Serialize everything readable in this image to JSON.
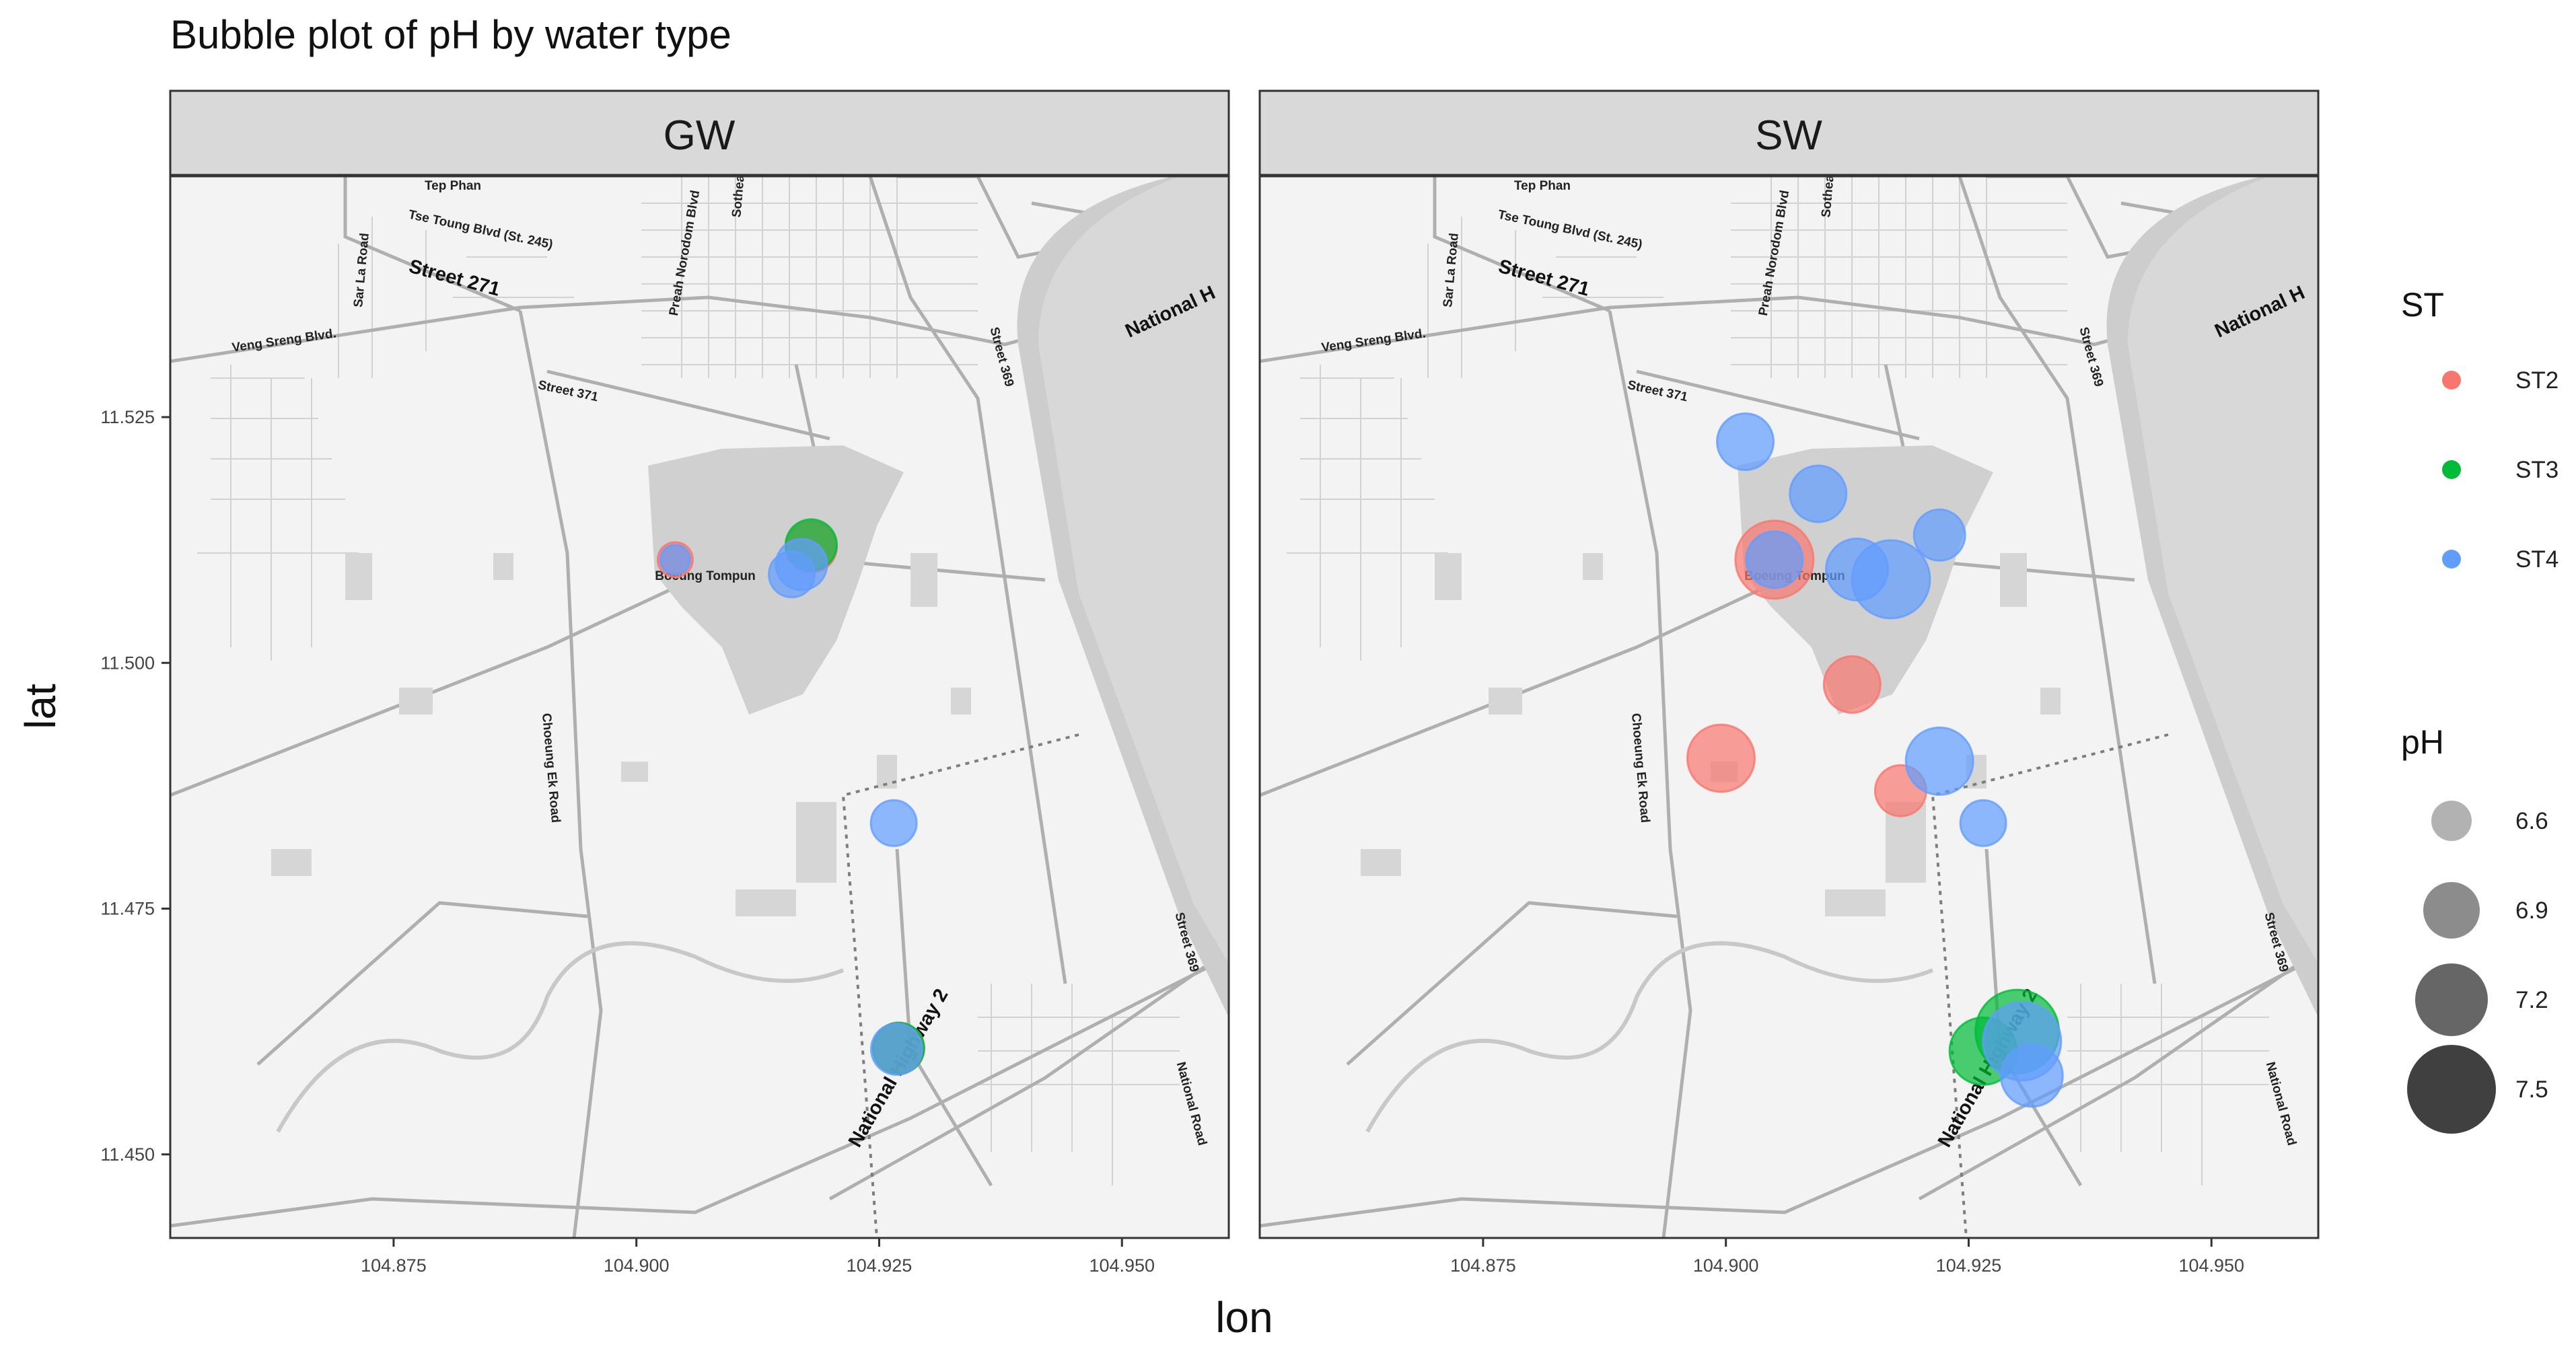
{
  "chart_data": {
    "type": "scatter",
    "title": "Bubble plot of pH by water type",
    "xlabel": "lon",
    "ylabel": "lat",
    "xlim": [
      104.852,
      104.961
    ],
    "ylim": [
      11.4415,
      11.5495
    ],
    "xticks": [
      104.875,
      104.9,
      104.925,
      104.95
    ],
    "xtick_labels": [
      "104.875",
      "104.900",
      "104.925",
      "104.950"
    ],
    "yticks": [
      11.45,
      11.475,
      11.5,
      11.525
    ],
    "ytick_labels": [
      "11.450",
      "11.475",
      "11.500",
      "11.525"
    ],
    "facets": [
      "GW",
      "SW"
    ],
    "color_legend": {
      "title": "ST",
      "entries": [
        {
          "label": "ST2",
          "color": "#F8766D"
        },
        {
          "label": "ST3",
          "color": "#00BA38"
        },
        {
          "label": "ST4",
          "color": "#619CFF"
        }
      ]
    },
    "size_legend": {
      "title": "pH",
      "values": [
        6.6,
        6.9,
        7.2,
        7.5
      ],
      "labels": [
        "6.6",
        "6.9",
        "7.2",
        "7.5"
      ]
    },
    "series": [
      {
        "name": "ST2",
        "facet": "GW",
        "points": [
          {
            "lon": 104.904,
            "lat": 11.5105,
            "pH": 6.5
          },
          {
            "lon": 104.918,
            "lat": 11.5118,
            "pH": 6.8
          },
          {
            "lon": 104.927,
            "lat": 11.4608,
            "pH": 6.8
          }
        ]
      },
      {
        "name": "ST3",
        "facet": "GW",
        "points": [
          {
            "lon": 104.918,
            "lat": 11.512,
            "pH": 6.8
          },
          {
            "lon": 104.927,
            "lat": 11.4608,
            "pH": 6.8
          }
        ]
      },
      {
        "name": "ST4",
        "facet": "GW",
        "points": [
          {
            "lon": 104.904,
            "lat": 11.5105,
            "pH": 6.4
          },
          {
            "lon": 104.917,
            "lat": 11.51,
            "pH": 6.8
          },
          {
            "lon": 104.916,
            "lat": 11.509,
            "pH": 6.7
          },
          {
            "lon": 104.9265,
            "lat": 11.4837,
            "pH": 6.7
          },
          {
            "lon": 104.9268,
            "lat": 11.4607,
            "pH": 6.8
          }
        ]
      },
      {
        "name": "ST2",
        "facet": "SW",
        "points": [
          {
            "lon": 104.905,
            "lat": 11.5105,
            "pH": 7.3
          },
          {
            "lon": 104.8995,
            "lat": 11.4903,
            "pH": 7.1
          },
          {
            "lon": 104.913,
            "lat": 11.4978,
            "pH": 6.9
          },
          {
            "lon": 104.918,
            "lat": 11.487,
            "pH": 6.8
          }
        ]
      },
      {
        "name": "ST3",
        "facet": "SW",
        "points": [
          {
            "lon": 104.93,
            "lat": 11.4625,
            "pH": 7.4
          },
          {
            "lon": 104.9265,
            "lat": 11.4605,
            "pH": 7.1
          }
        ]
      },
      {
        "name": "ST4",
        "facet": "SW",
        "points": [
          {
            "lon": 104.902,
            "lat": 11.5225,
            "pH": 6.9
          },
          {
            "lon": 104.9095,
            "lat": 11.5172,
            "pH": 6.9
          },
          {
            "lon": 104.905,
            "lat": 11.5105,
            "pH": 6.9
          },
          {
            "lon": 104.9135,
            "lat": 11.5095,
            "pH": 7.0
          },
          {
            "lon": 104.917,
            "lat": 11.5085,
            "pH": 7.3
          },
          {
            "lon": 104.922,
            "lat": 11.513,
            "pH": 6.8
          },
          {
            "lon": 104.922,
            "lat": 11.49,
            "pH": 7.1
          },
          {
            "lon": 104.9265,
            "lat": 11.4837,
            "pH": 6.7
          },
          {
            "lon": 104.9305,
            "lat": 11.4615,
            "pH": 7.3
          },
          {
            "lon": 104.9315,
            "lat": 11.458,
            "pH": 7.0
          }
        ]
      }
    ]
  },
  "map_labels": [
    "Tep Phan",
    "Tse Toung Blvd (St. 245)",
    "Street 271",
    "Preah Norodom Blvd",
    "Sothea",
    "National H",
    "Sar La Road",
    "Veng Sreng Blvd.",
    "Street 369",
    "Street 371",
    "Boeung Tompun",
    "Choeung Ek Road",
    "Street 369",
    "National Highway 2",
    "National Road",
    "National Highway 2"
  ],
  "colors": {
    "strip_bg": "#D9D9D9",
    "panel_border": "#333333",
    "map_bg": "#F2F2F2",
    "map_road": "#BDBDBD",
    "lake": "#CFCFCF"
  }
}
